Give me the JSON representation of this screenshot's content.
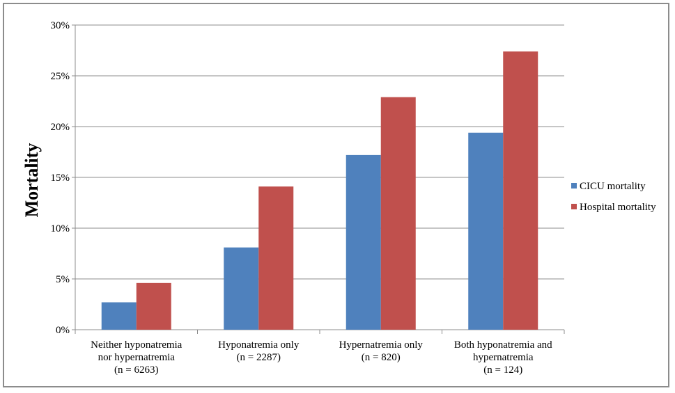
{
  "chart_data": {
    "type": "bar",
    "title": "",
    "xlabel": "",
    "ylabel": "Mortality",
    "ylim": [
      0,
      30
    ],
    "yticks": [
      0,
      5,
      10,
      15,
      20,
      25,
      30
    ],
    "ytick_labels": [
      "0%",
      "5%",
      "10%",
      "15%",
      "20%",
      "25%",
      "30%"
    ],
    "grid": true,
    "legend_position": "right",
    "categories": [
      [
        "Neither hyponatremia",
        "nor hypernatremia",
        "(n = 6263)"
      ],
      [
        "Hyponatremia only",
        "(n = 2287)"
      ],
      [
        "Hypernatremia only",
        "(n = 820)"
      ],
      [
        "Both hyponatremia and",
        "hypernatremia",
        "(n = 124)"
      ]
    ],
    "series": [
      {
        "name": "CICU mortality",
        "color": "#4f81bd",
        "values": [
          2.7,
          8.1,
          17.2,
          19.4
        ]
      },
      {
        "name": "Hospital mortality",
        "color": "#c0504d",
        "values": [
          4.6,
          14.1,
          22.9,
          27.4
        ]
      }
    ]
  }
}
